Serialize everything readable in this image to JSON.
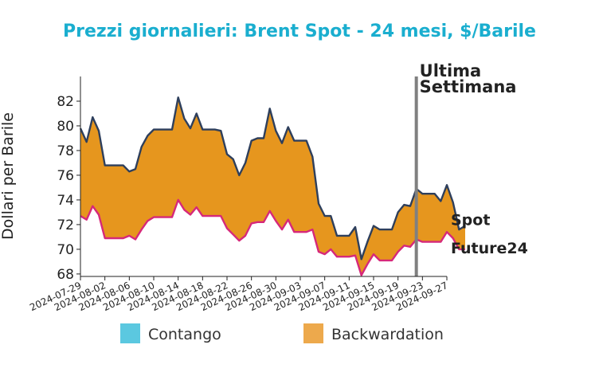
{
  "chart_data": {
    "type": "area",
    "title": "Prezzi giornalieri: Brent Spot - 24 mesi, $/Barile",
    "ylabel": "Dollari per Barile",
    "xlabel": "",
    "ylim": [
      67.8,
      84.0
    ],
    "yticks": [
      68,
      70,
      72,
      74,
      76,
      78,
      80,
      82
    ],
    "xlim": [
      "2024-07-29",
      "2024-09-27"
    ],
    "xticks": [
      "2024-07-29",
      "2024-08-02",
      "2024-08-06",
      "2024-08-10",
      "2024-08-14",
      "2024-08-18",
      "2024-08-22",
      "2024-08-26",
      "2024-08-30",
      "2024-09-03",
      "2024-09-07",
      "2024-09-11",
      "2024-09-15",
      "2024-09-19",
      "2024-09-23",
      "2024-09-27"
    ],
    "series": [
      {
        "name": "Spot",
        "color": "#2e3f5c",
        "points": [
          [
            "2024-07-29",
            79.8
          ],
          [
            "2024-07-30",
            78.7
          ],
          [
            "2024-07-31",
            80.7
          ],
          [
            "2024-08-01",
            79.6
          ],
          [
            "2024-08-02",
            76.8
          ],
          [
            "2024-08-05",
            76.8
          ],
          [
            "2024-08-06",
            76.3
          ],
          [
            "2024-08-07",
            76.5
          ],
          [
            "2024-08-08",
            78.3
          ],
          [
            "2024-08-09",
            79.2
          ],
          [
            "2024-08-10",
            79.7
          ],
          [
            "2024-08-12",
            79.7
          ],
          [
            "2024-08-13",
            79.7
          ],
          [
            "2024-08-14",
            82.3
          ],
          [
            "2024-08-15",
            80.6
          ],
          [
            "2024-08-16",
            79.8
          ],
          [
            "2024-08-17",
            81.0
          ],
          [
            "2024-08-18",
            79.7
          ],
          [
            "2024-08-20",
            79.7
          ],
          [
            "2024-08-21",
            79.6
          ],
          [
            "2024-08-22",
            77.7
          ],
          [
            "2024-08-23",
            77.3
          ],
          [
            "2024-08-24",
            76.0
          ],
          [
            "2024-08-25",
            77.0
          ],
          [
            "2024-08-26",
            78.8
          ],
          [
            "2024-08-27",
            79.0
          ],
          [
            "2024-08-28",
            79.0
          ],
          [
            "2024-08-29",
            81.4
          ],
          [
            "2024-08-30",
            79.6
          ],
          [
            "2024-08-31",
            78.6
          ],
          [
            "2024-09-01",
            79.9
          ],
          [
            "2024-09-02",
            78.8
          ],
          [
            "2024-09-03",
            78.8
          ],
          [
            "2024-09-04",
            78.8
          ],
          [
            "2024-09-05",
            77.5
          ],
          [
            "2024-09-06",
            73.7
          ],
          [
            "2024-09-07",
            72.7
          ],
          [
            "2024-09-08",
            72.7
          ],
          [
            "2024-09-09",
            71.1
          ],
          [
            "2024-09-10",
            71.1
          ],
          [
            "2024-09-11",
            71.1
          ],
          [
            "2024-09-12",
            71.8
          ],
          [
            "2024-09-13",
            69.2
          ],
          [
            "2024-09-14",
            70.6
          ],
          [
            "2024-09-15",
            71.9
          ],
          [
            "2024-09-16",
            71.6
          ],
          [
            "2024-09-17",
            71.6
          ],
          [
            "2024-09-18",
            71.6
          ],
          [
            "2024-09-19",
            73.0
          ],
          [
            "2024-09-20",
            73.6
          ],
          [
            "2024-09-21",
            73.5
          ],
          [
            "2024-09-22",
            74.9
          ],
          [
            "2024-09-23",
            74.5
          ],
          [
            "2024-09-24",
            74.5
          ],
          [
            "2024-09-25",
            74.5
          ],
          [
            "2024-09-26",
            73.9
          ],
          [
            "2024-09-27",
            75.2
          ],
          [
            "2024-09-28",
            73.8
          ],
          [
            "2024-09-29",
            71.6
          ],
          [
            "2024-09-30",
            71.9
          ]
        ]
      },
      {
        "name": "Future24",
        "color": "#d6287a",
        "points": [
          [
            "2024-07-29",
            72.7
          ],
          [
            "2024-07-30",
            72.4
          ],
          [
            "2024-07-31",
            73.5
          ],
          [
            "2024-08-01",
            72.8
          ],
          [
            "2024-08-02",
            70.9
          ],
          [
            "2024-08-05",
            70.9
          ],
          [
            "2024-08-06",
            71.1
          ],
          [
            "2024-08-07",
            70.8
          ],
          [
            "2024-08-08",
            71.6
          ],
          [
            "2024-08-09",
            72.3
          ],
          [
            "2024-08-10",
            72.6
          ],
          [
            "2024-08-12",
            72.6
          ],
          [
            "2024-08-13",
            72.6
          ],
          [
            "2024-08-14",
            74.0
          ],
          [
            "2024-08-15",
            73.2
          ],
          [
            "2024-08-16",
            72.8
          ],
          [
            "2024-08-17",
            73.4
          ],
          [
            "2024-08-18",
            72.7
          ],
          [
            "2024-08-20",
            72.7
          ],
          [
            "2024-08-21",
            72.7
          ],
          [
            "2024-08-22",
            71.7
          ],
          [
            "2024-08-23",
            71.2
          ],
          [
            "2024-08-24",
            70.7
          ],
          [
            "2024-08-25",
            71.1
          ],
          [
            "2024-08-26",
            72.1
          ],
          [
            "2024-08-27",
            72.2
          ],
          [
            "2024-08-28",
            72.2
          ],
          [
            "2024-08-29",
            73.1
          ],
          [
            "2024-08-30",
            72.3
          ],
          [
            "2024-08-31",
            71.6
          ],
          [
            "2024-09-01",
            72.4
          ],
          [
            "2024-09-02",
            71.4
          ],
          [
            "2024-09-03",
            71.4
          ],
          [
            "2024-09-04",
            71.4
          ],
          [
            "2024-09-05",
            71.6
          ],
          [
            "2024-09-06",
            69.8
          ],
          [
            "2024-09-07",
            69.6
          ],
          [
            "2024-09-08",
            70.0
          ],
          [
            "2024-09-09",
            69.4
          ],
          [
            "2024-09-10",
            69.4
          ],
          [
            "2024-09-11",
            69.4
          ],
          [
            "2024-09-12",
            69.5
          ],
          [
            "2024-09-13",
            67.9
          ],
          [
            "2024-09-14",
            68.8
          ],
          [
            "2024-09-15",
            69.6
          ],
          [
            "2024-09-16",
            69.1
          ],
          [
            "2024-09-17",
            69.1
          ],
          [
            "2024-09-18",
            69.1
          ],
          [
            "2024-09-19",
            69.8
          ],
          [
            "2024-09-20",
            70.3
          ],
          [
            "2024-09-21",
            70.2
          ],
          [
            "2024-09-22",
            70.8
          ],
          [
            "2024-09-23",
            70.6
          ],
          [
            "2024-09-24",
            70.6
          ],
          [
            "2024-09-25",
            70.6
          ],
          [
            "2024-09-26",
            70.6
          ],
          [
            "2024-09-27",
            71.4
          ],
          [
            "2024-09-28",
            70.9
          ],
          [
            "2024-09-29",
            70.0
          ],
          [
            "2024-09-30",
            70.0
          ]
        ]
      }
    ],
    "marker": {
      "date": "2024-09-22",
      "label_line1": "Ultima",
      "label_line2": "Settimana",
      "color": "#808080"
    },
    "legend": {
      "placement": "bottom",
      "items": [
        {
          "label": "Contango",
          "color": "#5bc8e0"
        },
        {
          "label": "Backwardation",
          "color": "#eda94c"
        }
      ]
    },
    "fill_color": "#e6961e",
    "title_color": "#1aaecf",
    "grid": false
  }
}
